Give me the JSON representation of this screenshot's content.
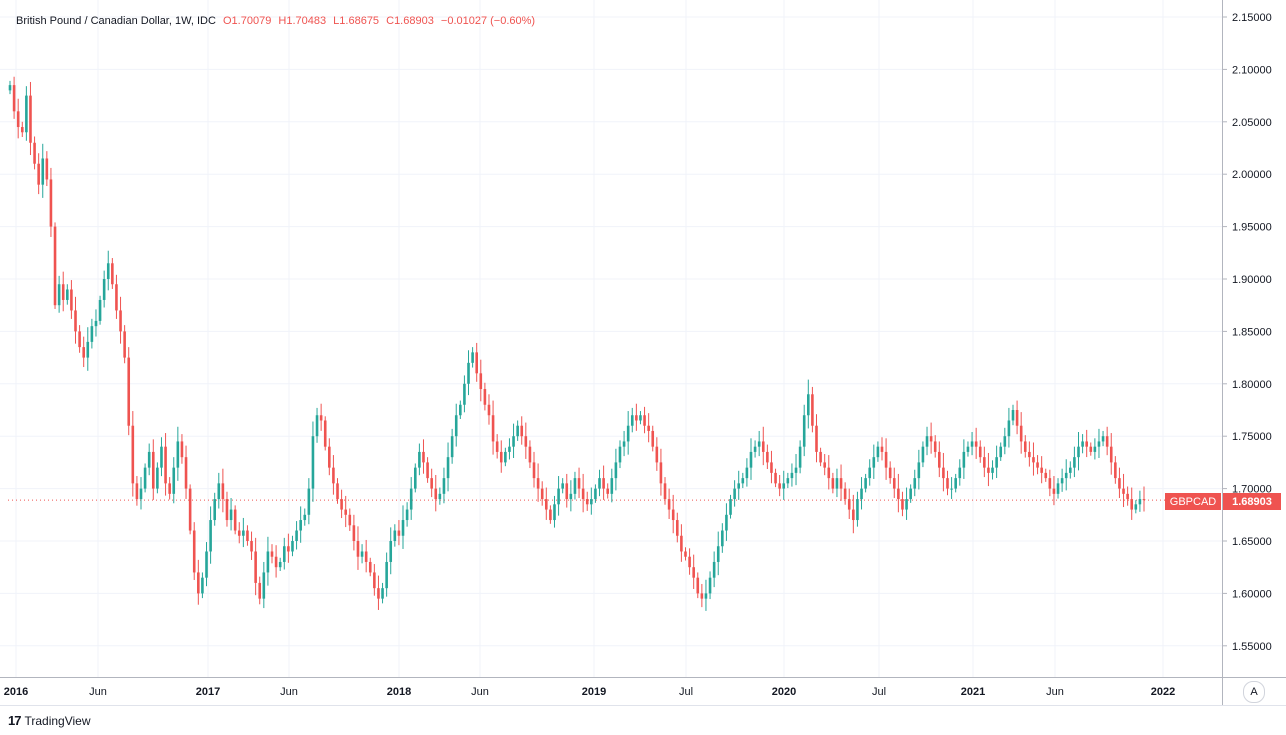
{
  "legend": {
    "symbol": "British Pound / Canadian Dollar, 1W, IDC",
    "open": "O1.70079",
    "high": "H1.70483",
    "low": "L1.68675",
    "close": "C1.68903",
    "change": "−0.01027 (−0.60%)"
  },
  "footer": {
    "brand": "TradingView"
  },
  "auto_label": "A",
  "colors": {
    "up": "#26a69a",
    "down": "#ef5350",
    "grid": "#f0f3fa",
    "axis": "#131722"
  },
  "chart_data": {
    "type": "candlestick",
    "ylim": [
      1.52,
      2.16
    ],
    "y_ticks": [
      "2.15000",
      "2.10000",
      "2.05000",
      "2.00000",
      "1.95000",
      "1.90000",
      "1.85000",
      "1.80000",
      "1.75000",
      "1.70000",
      "1.65000",
      "1.60000",
      "1.55000"
    ],
    "x_ticks": [
      "2016",
      "Jun",
      "2017",
      "Jun",
      "2018",
      "Jun",
      "2019",
      "Jul",
      "2020",
      "Jul",
      "2021",
      "Jun",
      "2022"
    ],
    "price_tag": {
      "name": "GBPCAD",
      "value": "1.68903"
    },
    "closes": [
      2.085,
      2.06,
      2.045,
      2.04,
      2.075,
      2.03,
      2.01,
      1.99,
      2.015,
      1.995,
      1.95,
      1.875,
      1.895,
      1.88,
      1.89,
      1.87,
      1.85,
      1.835,
      1.825,
      1.84,
      1.855,
      1.86,
      1.88,
      1.9,
      1.915,
      1.895,
      1.87,
      1.85,
      1.825,
      1.76,
      1.705,
      1.69,
      1.7,
      1.72,
      1.735,
      1.7,
      1.72,
      1.74,
      1.705,
      1.695,
      1.72,
      1.745,
      1.73,
      1.7,
      1.66,
      1.62,
      1.6,
      1.615,
      1.64,
      1.67,
      1.69,
      1.705,
      1.69,
      1.67,
      1.68,
      1.66,
      1.655,
      1.66,
      1.65,
      1.64,
      1.61,
      1.595,
      1.62,
      1.64,
      1.635,
      1.625,
      1.63,
      1.645,
      1.64,
      1.65,
      1.66,
      1.67,
      1.675,
      1.7,
      1.75,
      1.77,
      1.765,
      1.74,
      1.72,
      1.705,
      1.69,
      1.68,
      1.675,
      1.665,
      1.65,
      1.635,
      1.64,
      1.63,
      1.62,
      1.605,
      1.595,
      1.605,
      1.63,
      1.65,
      1.66,
      1.655,
      1.67,
      1.68,
      1.7,
      1.72,
      1.735,
      1.725,
      1.71,
      1.7,
      1.69,
      1.695,
      1.71,
      1.73,
      1.75,
      1.77,
      1.78,
      1.8,
      1.82,
      1.83,
      1.81,
      1.795,
      1.78,
      1.77,
      1.745,
      1.735,
      1.725,
      1.735,
      1.74,
      1.75,
      1.76,
      1.75,
      1.74,
      1.725,
      1.71,
      1.7,
      1.69,
      1.68,
      1.67,
      1.685,
      1.7,
      1.705,
      1.69,
      1.695,
      1.71,
      1.7,
      1.69,
      1.685,
      1.69,
      1.7,
      1.71,
      1.7,
      1.695,
      1.71,
      1.725,
      1.74,
      1.745,
      1.76,
      1.77,
      1.765,
      1.77,
      1.76,
      1.755,
      1.74,
      1.725,
      1.705,
      1.69,
      1.68,
      1.67,
      1.655,
      1.64,
      1.635,
      1.625,
      1.615,
      1.6,
      1.595,
      1.6,
      1.615,
      1.63,
      1.645,
      1.66,
      1.675,
      1.69,
      1.7,
      1.705,
      1.71,
      1.72,
      1.735,
      1.74,
      1.745,
      1.735,
      1.725,
      1.715,
      1.705,
      1.7,
      1.705,
      1.71,
      1.715,
      1.72,
      1.74,
      1.77,
      1.79,
      1.76,
      1.735,
      1.725,
      1.72,
      1.71,
      1.7,
      1.71,
      1.7,
      1.69,
      1.68,
      1.67,
      1.69,
      1.7,
      1.71,
      1.72,
      1.73,
      1.74,
      1.735,
      1.72,
      1.71,
      1.7,
      1.69,
      1.68,
      1.69,
      1.7,
      1.71,
      1.725,
      1.74,
      1.75,
      1.745,
      1.735,
      1.72,
      1.71,
      1.7,
      1.7,
      1.71,
      1.72,
      1.735,
      1.74,
      1.745,
      1.74,
      1.73,
      1.72,
      1.715,
      1.72,
      1.73,
      1.74,
      1.75,
      1.765,
      1.775,
      1.76,
      1.745,
      1.735,
      1.73,
      1.725,
      1.72,
      1.715,
      1.71,
      1.7,
      1.695,
      1.705,
      1.71,
      1.715,
      1.72,
      1.73,
      1.74,
      1.745,
      1.74,
      1.735,
      1.74,
      1.745,
      1.75,
      1.74,
      1.725,
      1.71,
      1.7,
      1.695,
      1.69,
      1.68,
      1.685,
      1.69,
      1.689
    ]
  }
}
